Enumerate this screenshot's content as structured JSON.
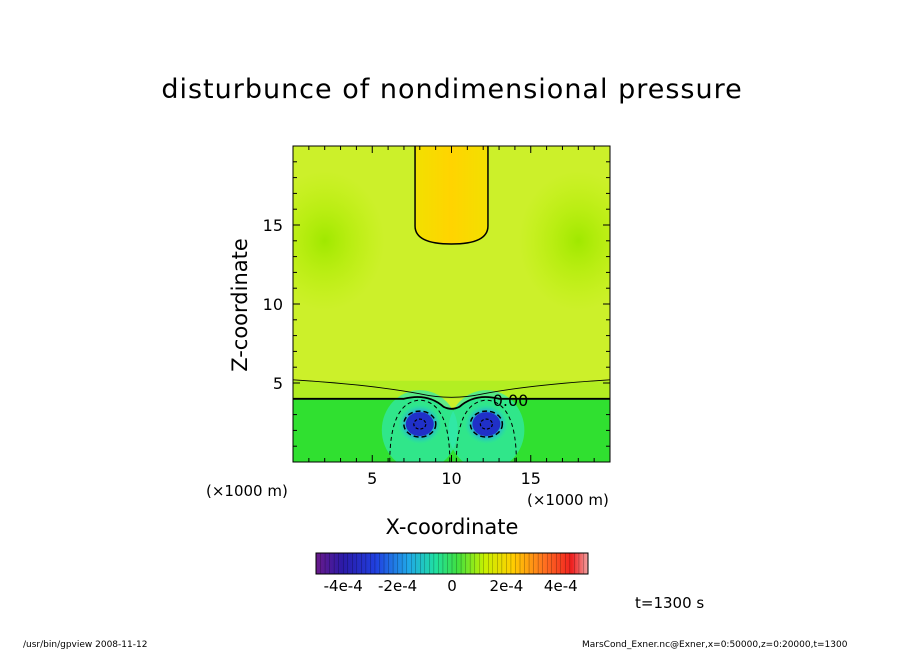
{
  "chart_data": {
    "type": "heatmap",
    "title": "disturbunce of nondimensional pressure",
    "xlabel": "X-coordinate",
    "ylabel": "Z-coordinate",
    "x_unit": "(×1000 m)",
    "y_unit": "(×1000 m)",
    "xlim": [
      0,
      20
    ],
    "ylim": [
      0,
      20
    ],
    "x_ticks": [
      "5",
      "10",
      "15"
    ],
    "y_ticks": [
      "5",
      "10",
      "15"
    ],
    "x_tick_values": [
      5,
      10,
      15
    ],
    "y_tick_values": [
      5,
      10,
      15
    ],
    "contour_label": "0.00",
    "features": [
      {
        "kind": "positive-column",
        "x": 10,
        "z_bottom": 13.8,
        "z_top": 20,
        "half_width": 2.3
      },
      {
        "kind": "negative-core",
        "x": 8,
        "z": 2.4,
        "value": -0.00045
      },
      {
        "kind": "negative-core",
        "x": 12.2,
        "z": 2.4,
        "value": -0.00045
      },
      {
        "kind": "zero-contour",
        "z": 4.0
      }
    ],
    "colorbar": {
      "ticks": [
        "-4e-4",
        "-2e-4",
        "0",
        "2e-4",
        "4e-4"
      ],
      "tick_values": [
        -0.0004,
        -0.0002,
        0,
        0.0002,
        0.0004
      ],
      "range": [
        -0.0005,
        0.0005
      ]
    }
  },
  "annotations": {
    "time": "t=1300 s",
    "footer_left": "/usr/bin/gpview   2008-11-12",
    "footer_right": "MarsCond_Exner.nc@Exner,x=0:50000,z=0:20000,t=1300"
  }
}
